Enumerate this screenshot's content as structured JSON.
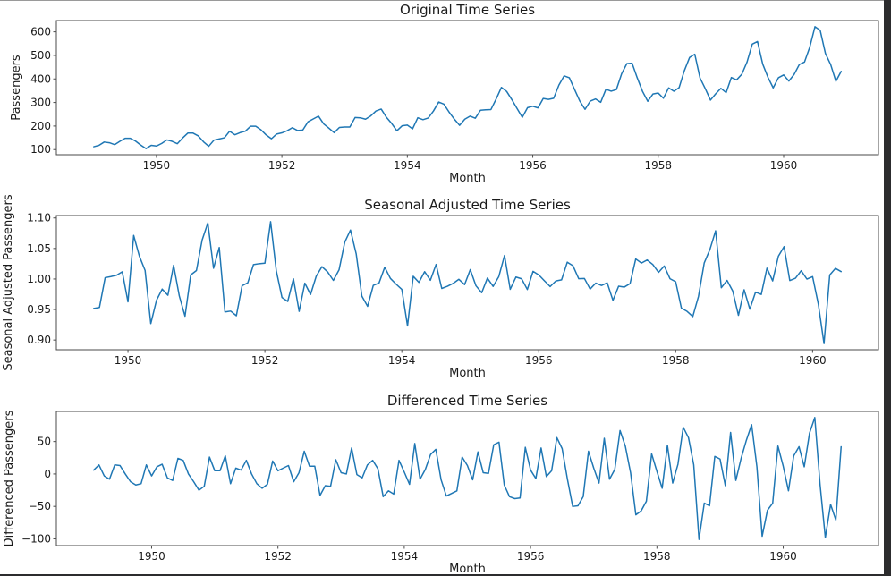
{
  "figure": {
    "background": "#ffffff",
    "line_color": "#1f77b4",
    "spine_color": "#4a4a4a",
    "text_color": "#1a1a1a",
    "edge_band_color": "#2c2c2e"
  },
  "chart_data": [
    {
      "type": "line",
      "title": "Original Time Series",
      "xlabel": "Month",
      "ylabel": "Passengers",
      "legend": "none",
      "grid": false,
      "x_unit": "decimal_year_monthly",
      "x_start": 1949.0,
      "x_step": 0.0833333,
      "xlim": [
        1948.404,
        1961.512
      ],
      "ylim": [
        78.1,
        647.9
      ],
      "xticks": [
        1950,
        1952,
        1954,
        1956,
        1958,
        1960
      ],
      "yticks": [
        100,
        200,
        300,
        400,
        500,
        600
      ],
      "ytick_decimals": 0,
      "values": [
        112,
        118,
        132,
        129,
        121,
        135,
        148,
        148,
        136,
        119,
        104,
        118,
        115,
        126,
        141,
        135,
        125,
        149,
        170,
        170,
        158,
        133,
        114,
        140,
        145,
        150,
        178,
        163,
        172,
        178,
        199,
        199,
        184,
        162,
        146,
        166,
        171,
        180,
        193,
        181,
        183,
        218,
        230,
        242,
        209,
        191,
        172,
        194,
        196,
        196,
        236,
        235,
        229,
        243,
        264,
        272,
        237,
        211,
        180,
        201,
        204,
        188,
        235,
        227,
        234,
        264,
        302,
        293,
        259,
        229,
        203,
        229,
        242,
        233,
        267,
        269,
        270,
        315,
        364,
        347,
        312,
        274,
        237,
        278,
        284,
        277,
        317,
        313,
        318,
        374,
        413,
        405,
        355,
        306,
        271,
        306,
        315,
        301,
        356,
        348,
        355,
        422,
        465,
        467,
        404,
        347,
        305,
        336,
        340,
        318,
        362,
        348,
        363,
        435,
        491,
        505,
        404,
        359,
        310,
        337,
        360,
        342,
        406,
        396,
        420,
        472,
        548,
        559,
        463,
        407,
        362,
        405,
        417,
        391,
        419,
        461,
        472,
        535,
        622,
        606,
        508,
        461,
        390,
        432
      ]
    },
    {
      "type": "line",
      "title": "Seasonal Adjusted Time Series",
      "xlabel": "Month",
      "ylabel": "Seasonal Adjusted Passengers",
      "legend": "none",
      "grid": false,
      "x_unit": "decimal_year_monthly",
      "x_start": 1949.5,
      "x_step": 0.0833333,
      "xlim": [
        1948.954,
        1960.962
      ],
      "ylim": [
        0.8841,
        1.104
      ],
      "xticks": [
        1950,
        1952,
        1954,
        1956,
        1958,
        1960
      ],
      "yticks": [
        0.9,
        0.95,
        1.0,
        1.05,
        1.1
      ],
      "ytick_decimals": 2,
      "values": [
        0.9517,
        0.9534,
        1.0022,
        1.004,
        1.0062,
        1.0118,
        0.9626,
        1.0714,
        1.0374,
        1.014,
        0.9269,
        0.9651,
        0.9835,
        0.9734,
        1.0225,
        0.9721,
        0.939,
        1.0067,
        1.0138,
        1.0639,
        1.0918,
        1.0176,
        1.0516,
        0.946,
        0.9474,
        0.9398,
        0.9889,
        0.9938,
        1.0235,
        1.0251,
        1.0259,
        1.094,
        1.0134,
        0.9696,
        0.9632,
        1.0004,
        0.9469,
        0.9931,
        0.9746,
        1.0047,
        1.0202,
        1.0115,
        0.9977,
        1.0151,
        1.0605,
        1.0802,
        1.0413,
        0.9718,
        0.9552,
        0.9895,
        0.9934,
        1.0192,
        1.0009,
        0.9915,
        0.9829,
        0.9232,
        1.0044,
        0.9944,
        1.012,
        0.9979,
        1.0238,
        0.9845,
        0.9881,
        0.9928,
        0.9995,
        0.9908,
        1.0154,
        0.9888,
        0.9776,
        1.0015,
        0.9879,
        1.004,
        1.0385,
        0.9831,
        1.0032,
        1.0003,
        0.9828,
        1.0125,
        1.0067,
        0.997,
        0.9876,
        0.9968,
        0.9986,
        1.0275,
        1.0217,
        1.0005,
        1.0009,
        0.9835,
        0.9933,
        0.9894,
        0.9937,
        0.965,
        0.9882,
        0.9868,
        0.9924,
        1.0328,
        1.0261,
        1.0312,
        1.0236,
        1.0109,
        1.0213,
        1.0005,
        0.9955,
        0.9523,
        0.9469,
        0.9384,
        0.9716,
        1.0262,
        1.0484,
        1.079,
        0.9857,
        0.9977,
        0.9803,
        0.9405,
        0.9824,
        0.9506,
        0.9785,
        0.9747,
        1.0177,
        0.9969,
        1.0373,
        1.0531,
        0.9975,
        1.0013,
        1.0135,
        0.9999,
        1.0039,
        0.959,
        0.8941,
        1.0065,
        1.0174,
        1.0121
      ]
    },
    {
      "type": "line",
      "title": "Differenced Time Series",
      "xlabel": "Month",
      "ylabel": "Differenced Passengers",
      "legend": "none",
      "grid": false,
      "x_unit": "decimal_year_monthly",
      "x_start": 1949.0833,
      "x_step": 0.0833333,
      "xlim": [
        1948.492,
        1961.508
      ],
      "ylim": [
        -110.4,
        96.4
      ],
      "xticks": [
        1950,
        1952,
        1954,
        1956,
        1958,
        1960
      ],
      "yticks": [
        -100,
        -50,
        0,
        50
      ],
      "ytick_decimals": 0,
      "values": [
        6,
        14,
        -3,
        -8,
        14,
        13,
        0,
        -12,
        -17,
        -15,
        14,
        -3,
        11,
        15,
        -6,
        -10,
        24,
        21,
        0,
        -12,
        -25,
        -19,
        26,
        5,
        5,
        28,
        -15,
        9,
        6,
        21,
        0,
        -15,
        -22,
        -16,
        20,
        5,
        9,
        13,
        -12,
        2,
        35,
        12,
        12,
        -33,
        -18,
        -19,
        22,
        2,
        0,
        40,
        -1,
        -6,
        14,
        21,
        8,
        -35,
        -26,
        -31,
        21,
        3,
        -16,
        47,
        -8,
        7,
        30,
        38,
        -9,
        -34,
        -30,
        -26,
        26,
        13,
        -9,
        34,
        2,
        1,
        45,
        49,
        -17,
        -35,
        -38,
        -37,
        41,
        6,
        -7,
        40,
        -4,
        5,
        56,
        39,
        -8,
        -50,
        -49,
        -35,
        35,
        9,
        -14,
        55,
        -8,
        7,
        67,
        43,
        2,
        -63,
        -57,
        -42,
        31,
        4,
        -22,
        44,
        -14,
        15,
        72,
        56,
        14,
        -101,
        -45,
        -49,
        27,
        23,
        -18,
        64,
        -10,
        24,
        52,
        76,
        11,
        -96,
        -56,
        -45,
        43,
        12,
        -26,
        28,
        42,
        11,
        63,
        87,
        -16,
        -98,
        -47,
        -71,
        42
      ]
    }
  ]
}
